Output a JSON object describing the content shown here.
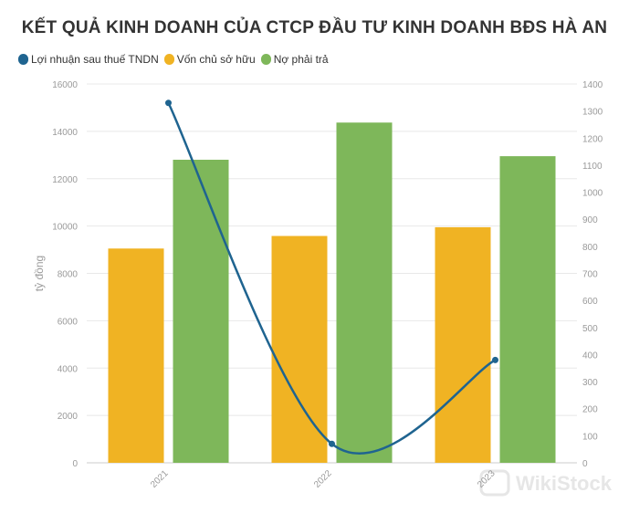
{
  "chart_data": {
    "type": "bar",
    "title": "KẾT QUẢ KINH DOANH CỦA CTCP ĐẦU TƯ KINH DOANH BĐS HÀ AN",
    "categories": [
      "2021",
      "2022",
      "2023"
    ],
    "ylabel": "tỷ đồng",
    "ylim": [
      0,
      16000
    ],
    "y_ticks": [
      0,
      2000,
      4000,
      6000,
      8000,
      10000,
      12000,
      14000,
      16000
    ],
    "y2lim": [
      0,
      1400
    ],
    "y2_ticks": [
      0,
      100,
      200,
      300,
      400,
      500,
      600,
      700,
      800,
      900,
      1000,
      1100,
      1200,
      1300,
      1400
    ],
    "grid": true,
    "legend_position": "top-left",
    "series": [
      {
        "name": "Lợi nhuận sau thuế TNDN",
        "type": "line",
        "axis": "right",
        "color": "#1f6490",
        "values": [
          1330,
          70,
          380
        ]
      },
      {
        "name": "Vốn chủ sở hữu",
        "type": "bar",
        "axis": "left",
        "color": "#f0b323",
        "values": [
          9050,
          9580,
          9950
        ]
      },
      {
        "name": "Nợ phải trả",
        "type": "bar",
        "axis": "left",
        "color": "#7eb75a",
        "values": [
          12800,
          14370,
          12950
        ]
      }
    ]
  },
  "watermark": {
    "text": "WikiStock"
  }
}
